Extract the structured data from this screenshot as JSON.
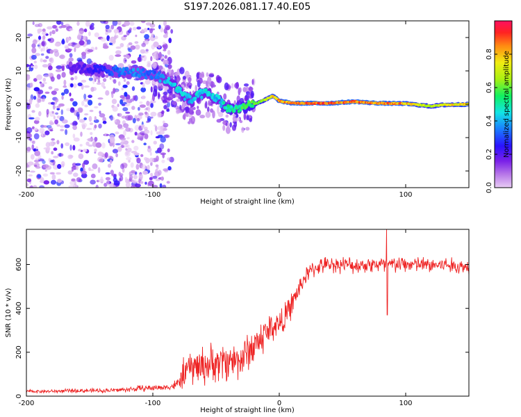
{
  "title": "S197.2026.081.17.40.E05",
  "chart_data": [
    {
      "type": "heatmap",
      "xlabel": "Height of straight line (km)",
      "ylabel": "Frequency (Hz)",
      "xlim": [
        -200,
        150
      ],
      "ylim": [
        -25,
        25
      ],
      "xticks": [
        "-200",
        "-100",
        "0",
        "100"
      ],
      "xtick_values": [
        -200,
        -100,
        0,
        100
      ],
      "yticks": [
        "-20",
        "-10",
        "0",
        "10",
        "20"
      ],
      "ytick_values": [
        -20,
        -10,
        0,
        10,
        20
      ],
      "colorbar": {
        "label": "Normalized spectral amplitude",
        "range": [
          0,
          1
        ],
        "ticks": [
          "0.0",
          "0.2",
          "0.4",
          "0.6",
          "0.8"
        ],
        "tick_values": [
          0.0,
          0.2,
          0.4,
          0.6,
          0.8
        ]
      },
      "ridge": {
        "x": [
          -165,
          -150,
          -130,
          -115,
          -100,
          -90,
          -80,
          -70,
          -60,
          -50,
          -40,
          -30,
          -20,
          -10,
          -5,
          0,
          10,
          20,
          40,
          60,
          70,
          80,
          100,
          120,
          130,
          150
        ],
        "freq": [
          11,
          10.5,
          10,
          9.5,
          9,
          7.5,
          4.5,
          1,
          3.5,
          2,
          -1.5,
          -1,
          0,
          1.5,
          2.5,
          1,
          0.3,
          0.3,
          0.3,
          0.8,
          0.5,
          0.3,
          0.2,
          -0.6,
          -0.2,
          0
        ],
        "amplitude": [
          0.2,
          0.25,
          0.35,
          0.4,
          0.35,
          0.45,
          0.5,
          0.45,
          0.5,
          0.45,
          0.55,
          0.6,
          0.65,
          0.75,
          0.85,
          0.9,
          0.95,
          0.95,
          0.95,
          0.95,
          0.95,
          0.95,
          0.9,
          0.75,
          0.8,
          0.85
        ]
      },
      "noise_region_x": [
        -200,
        -95
      ]
    },
    {
      "type": "line",
      "xlabel": "Height of straight line (km)",
      "ylabel": "SNR (10 * v/v)",
      "xlim": [
        -200,
        150
      ],
      "ylim": [
        0,
        760
      ],
      "xticks": [
        "-200",
        "-100",
        "0",
        "100"
      ],
      "xtick_values": [
        -200,
        -100,
        0,
        100
      ],
      "yticks": [
        "0",
        "200",
        "400",
        "600"
      ],
      "ytick_values": [
        0,
        200,
        400,
        600
      ],
      "series": [
        {
          "name": "SNR",
          "color": "#ee2222",
          "x": [
            -200,
            -180,
            -160,
            -140,
            -120,
            -110,
            -100,
            -90,
            -85,
            -80,
            -75,
            -70,
            -60,
            -50,
            -40,
            -30,
            -25,
            -20,
            -15,
            -10,
            -5,
            0,
            5,
            10,
            15,
            20,
            25,
            30,
            40,
            50,
            60,
            70,
            80,
            85,
            90,
            100,
            110,
            120,
            130,
            140,
            150
          ],
          "mean": [
            22,
            22,
            25,
            25,
            30,
            35,
            38,
            40,
            45,
            55,
            110,
            130,
            140,
            150,
            160,
            170,
            200,
            230,
            260,
            290,
            320,
            330,
            360,
            420,
            480,
            540,
            570,
            590,
            600,
            600,
            595,
            600,
            600,
            590,
            600,
            600,
            600,
            595,
            600,
            590,
            590
          ],
          "spread": [
            10,
            10,
            12,
            12,
            15,
            18,
            18,
            15,
            20,
            40,
            90,
            100,
            110,
            110,
            110,
            110,
            110,
            110,
            110,
            100,
            90,
            80,
            80,
            70,
            60,
            50,
            50,
            45,
            45,
            45,
            45,
            45,
            50,
            60,
            50,
            45,
            45,
            45,
            45,
            45,
            45
          ],
          "peak": {
            "x": 85,
            "value": 760
          },
          "dip": {
            "x": 85,
            "value": 370
          }
        }
      ]
    }
  ]
}
